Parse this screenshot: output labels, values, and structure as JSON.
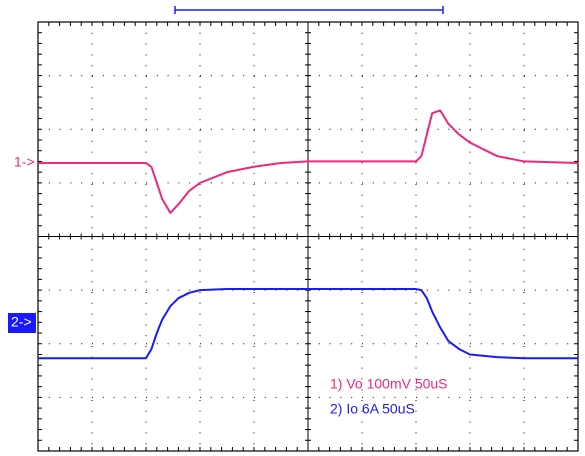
{
  "chart_data": {
    "type": "line",
    "markers": [
      "1->",
      "2->"
    ],
    "x": [
      0,
      1,
      2,
      2.1,
      2.2,
      2.3,
      2.45,
      2.6,
      2.8,
      3,
      3.5,
      4,
      4.5,
      5,
      6,
      7,
      7.1,
      7.2,
      7.3,
      7.45,
      7.6,
      7.8,
      8,
      8.5,
      9,
      10
    ],
    "xlim": [
      0,
      10
    ],
    "ylim": [
      0,
      8
    ],
    "series": [
      {
        "name": "1) Vo  100mV 50uS",
        "color": "#f0287c",
        "values": [
          5.37,
          5.37,
          5.37,
          5.3,
          5.0,
          4.7,
          4.44,
          4.6,
          4.85,
          5.0,
          5.2,
          5.3,
          5.37,
          5.4,
          5.4,
          5.4,
          5.5,
          5.9,
          6.3,
          6.35,
          6.1,
          5.9,
          5.75,
          5.5,
          5.4,
          5.37
        ]
      },
      {
        "name": "2) Io  6A 50uS",
        "color": "#1a1aff",
        "values": [
          1.73,
          1.73,
          1.73,
          1.9,
          2.2,
          2.45,
          2.7,
          2.85,
          2.95,
          3.0,
          3.02,
          3.02,
          3.02,
          3.02,
          3.02,
          3.02,
          3.0,
          2.85,
          2.6,
          2.3,
          2.05,
          1.9,
          1.8,
          1.75,
          1.73,
          1.73
        ]
      }
    ]
  }
}
